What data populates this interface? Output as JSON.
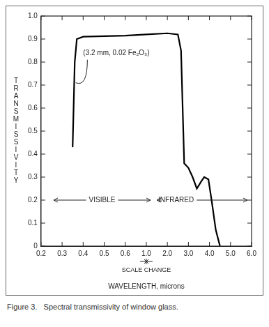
{
  "chart_data": {
    "type": "line",
    "title": "Figure 3.   Spectral transmissivity of window glass.",
    "x_label": "WAVELENGTH, microns",
    "y_label": "TRANSMISSIVITY",
    "annotations": [
      "(3.2 mm, 0.02 Fe₂O₃)",
      "VISIBLE",
      "INFRARED",
      "SCALE CHANGE"
    ],
    "x": [
      0.35,
      0.36,
      0.37,
      0.4,
      0.6,
      1.0,
      2.0,
      2.5,
      2.65,
      2.8,
      3.0,
      3.2,
      3.4,
      3.6,
      3.75,
      3.95,
      4.1,
      4.3,
      4.5
    ],
    "values": [
      0.43,
      0.8,
      0.9,
      0.91,
      0.915,
      0.92,
      0.925,
      0.92,
      0.85,
      0.36,
      0.34,
      0.3,
      0.25,
      0.28,
      0.3,
      0.29,
      0.2,
      0.07,
      0
    ],
    "color": "#000000",
    "xlim": [
      0.2,
      6
    ],
    "xticks": [
      0.2,
      0.3,
      0.4,
      0.5,
      0.6,
      {
        "value": 1,
        "label": "1.0"
      },
      {
        "value": 2,
        "label": "2.0"
      },
      {
        "value": 3,
        "label": "3.0"
      },
      {
        "value": 4,
        "label": "4.0"
      },
      {
        "value": 5,
        "label": "5.0"
      },
      {
        "value": 6,
        "label": "6.0"
      }
    ],
    "ylim": [
      0,
      1
    ],
    "yticks": [
      0,
      0.1,
      0.2,
      0.3,
      0.4,
      0.5,
      0.6,
      0.7,
      0.8,
      0.9,
      {
        "value": 1,
        "label": "1.0"
      }
    ],
    "grid": false
  }
}
